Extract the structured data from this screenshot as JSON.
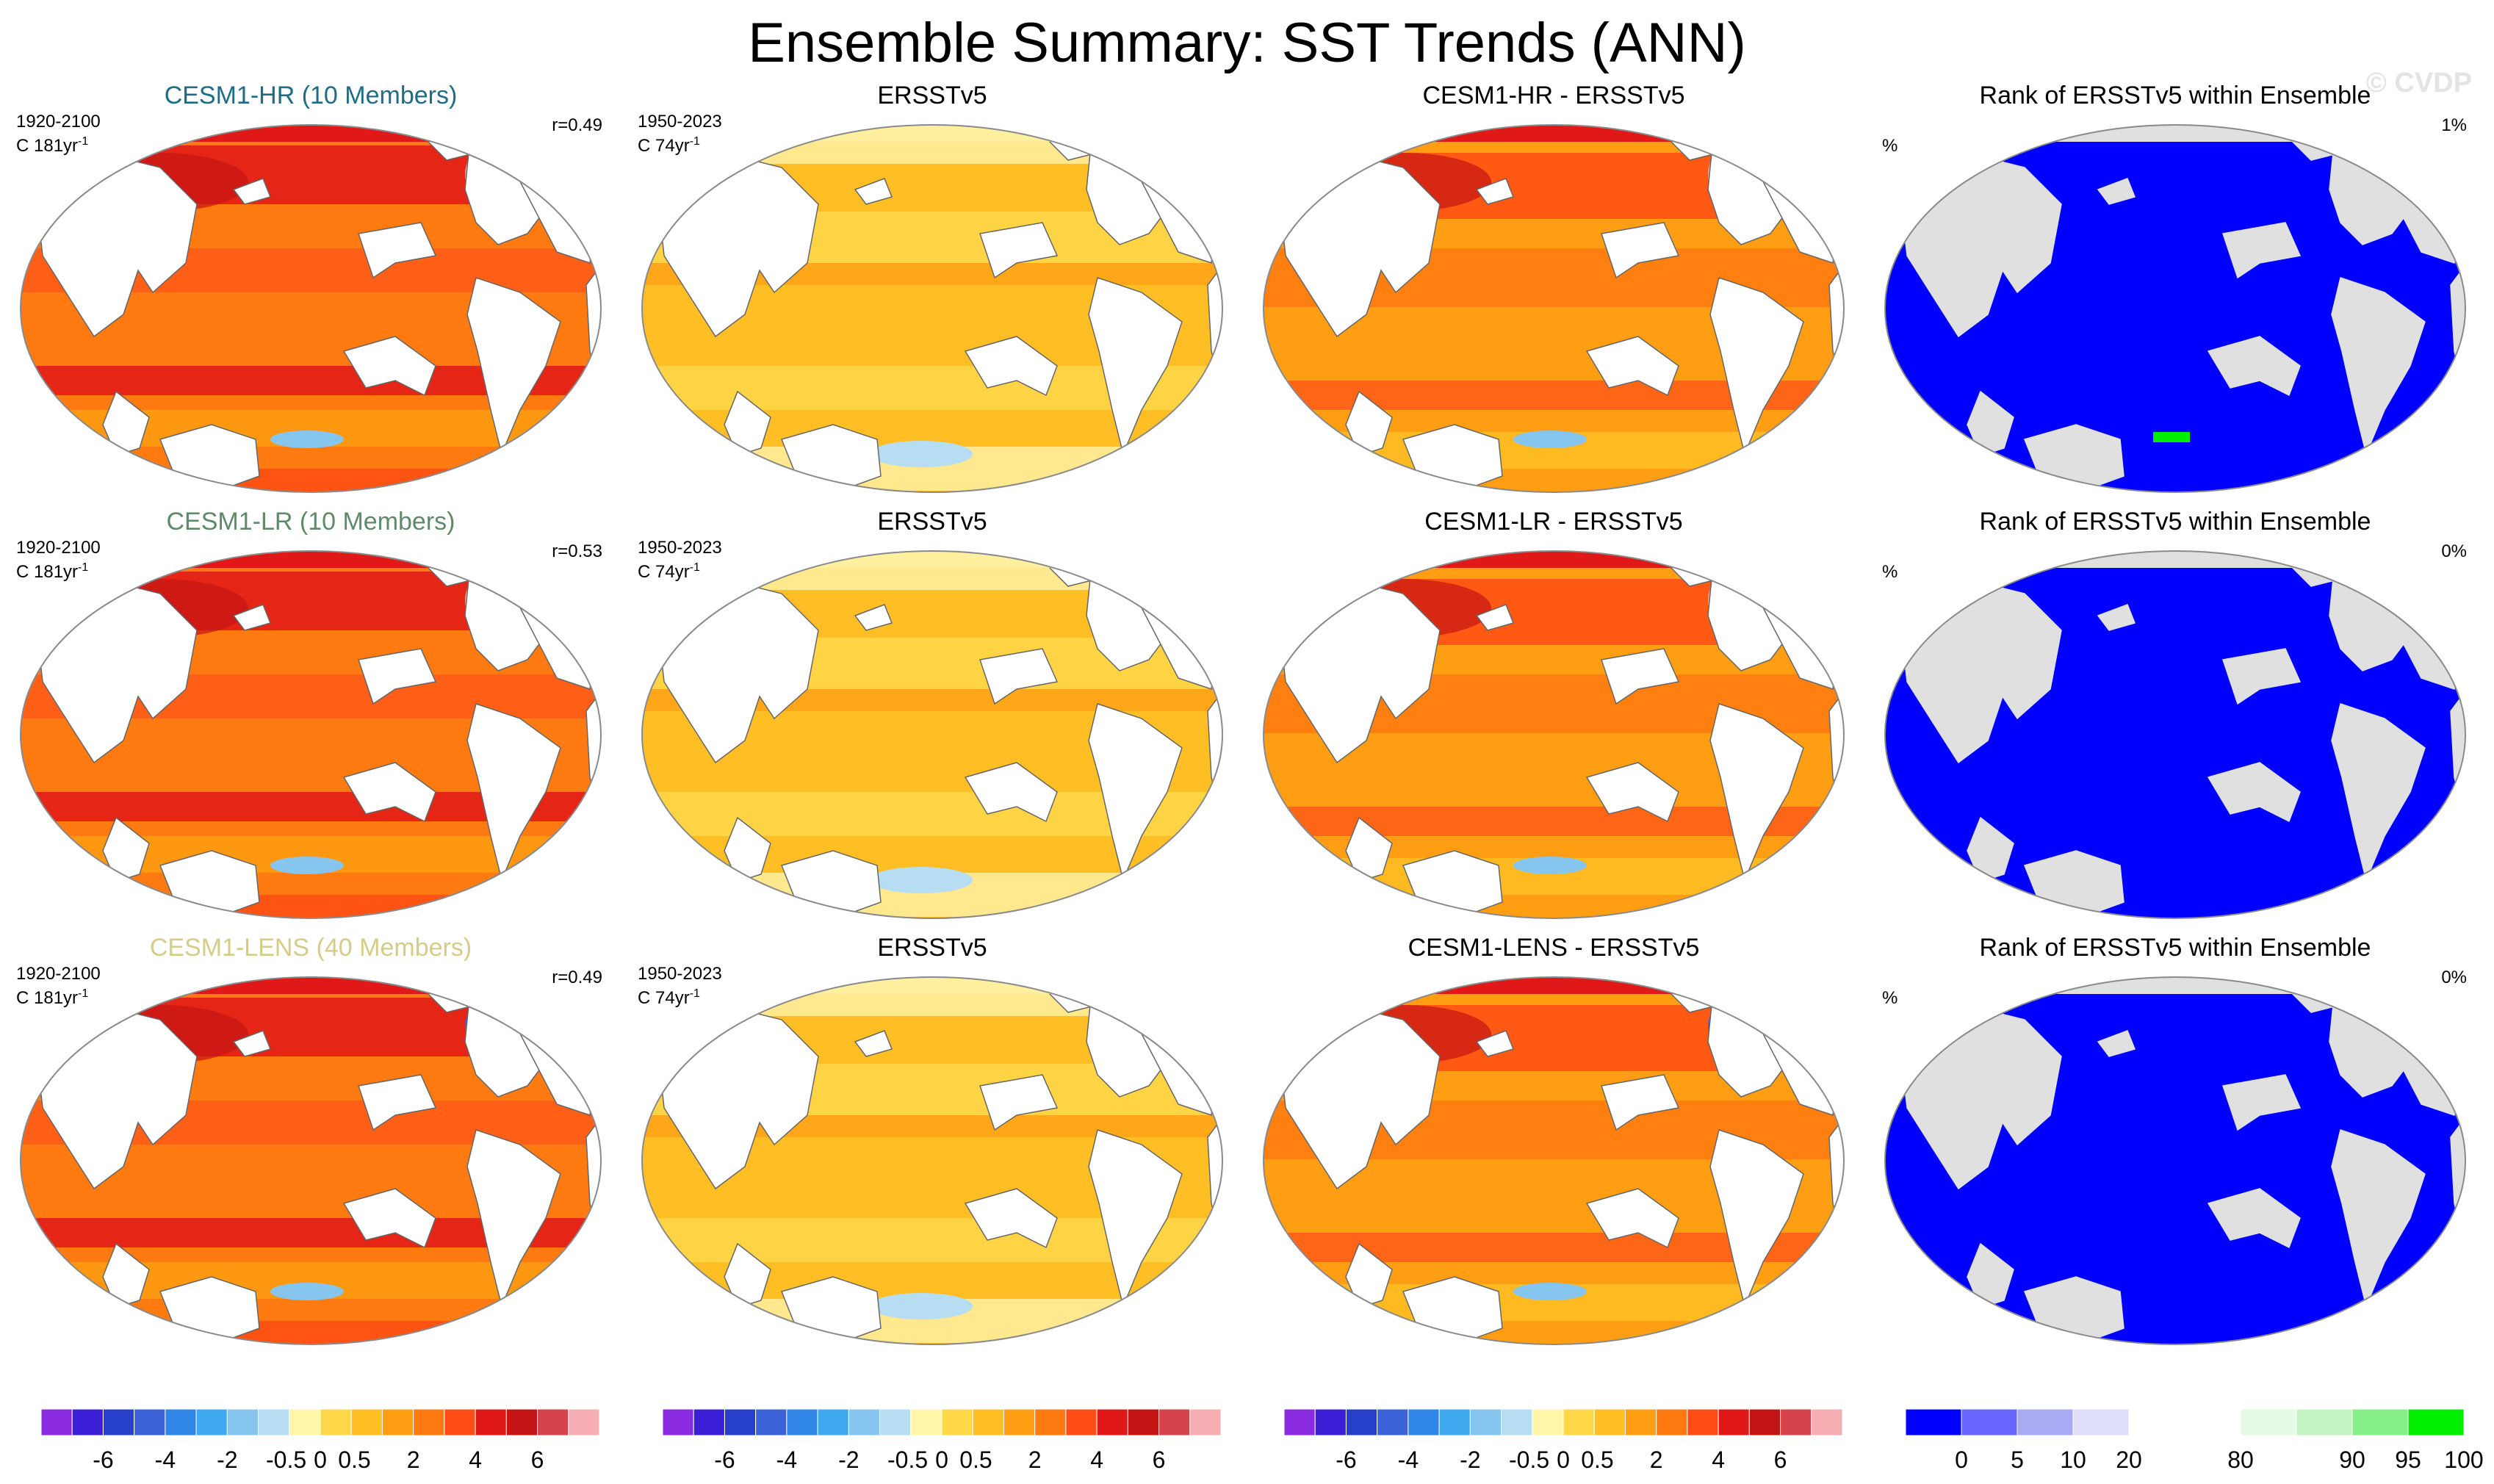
{
  "title": "Ensemble Summary: SST Trends (ANN)",
  "watermark": "© CVDP",
  "rows": [
    {
      "model": "CESM1-HR (10 Members)",
      "model_color": "#1f6c86",
      "model_period": "1920-2100",
      "model_units": "C 181yr",
      "units_exp": "-1",
      "pattern_r": "r=0.49",
      "obs_title": "ERSSTv5",
      "obs_period": "1950-2023",
      "obs_units": "C 74yr",
      "diff_title": "CESM1-HR - ERSSTv5",
      "rank_title": "Rank of ERSSTv5 within Ensemble",
      "rank_units": "%",
      "rank_pct": "1%"
    },
    {
      "model": "CESM1-LR (10 Members)",
      "model_color": "#5f8a6a",
      "model_period": "1920-2100",
      "model_units": "C 181yr",
      "units_exp": "-1",
      "pattern_r": "r=0.53",
      "obs_title": "ERSSTv5",
      "obs_period": "1950-2023",
      "obs_units": "C 74yr",
      "diff_title": "CESM1-LR - ERSSTv5",
      "rank_title": "Rank of ERSSTv5 within Ensemble",
      "rank_units": "%",
      "rank_pct": "0%"
    },
    {
      "model": "CESM1-LENS (40 Members)",
      "model_color": "#d6cc88",
      "model_period": "1920-2100",
      "model_units": "C 181yr",
      "units_exp": "-1",
      "pattern_r": "r=0.49",
      "obs_title": "ERSSTv5",
      "obs_period": "1950-2023",
      "obs_units": "C 74yr",
      "diff_title": "CESM1-LENS - ERSSTv5",
      "rank_title": "Rank of ERSSTv5 within Ensemble",
      "rank_units": "%",
      "rank_pct": "0%"
    }
  ],
  "chart_data": {
    "type": "heatmap",
    "variable": "SST trends",
    "season": "ANN",
    "trend_colorbar": {
      "colors": [
        "#8a2be2",
        "#3a1fd6",
        "#2740cc",
        "#3c64d8",
        "#2f86e6",
        "#3fa9f0",
        "#86c6ee",
        "#b6ddf2",
        "#fff6a8",
        "#ffd84a",
        "#ffbe24",
        "#ff9e12",
        "#ff7a10",
        "#ff4c14",
        "#e01818",
        "#c41414",
        "#d4444a",
        "#f6aeb2"
      ],
      "labels": [
        "-6",
        "-4",
        "-2",
        "-0.5",
        "0",
        "0.5",
        "2",
        "4",
        "6"
      ]
    },
    "rank_colorbar": {
      "colors": [
        "#0000ff",
        "#6666ff",
        "#aaaaf4",
        "#dedef8",
        "#ffffff",
        "#ffffff",
        "#e4fae4",
        "#c4f4c4",
        "#88f088",
        "#00ee00"
      ],
      "labels": [
        "0",
        "5",
        "10",
        "20",
        "80",
        "90",
        "95",
        "100"
      ]
    }
  }
}
